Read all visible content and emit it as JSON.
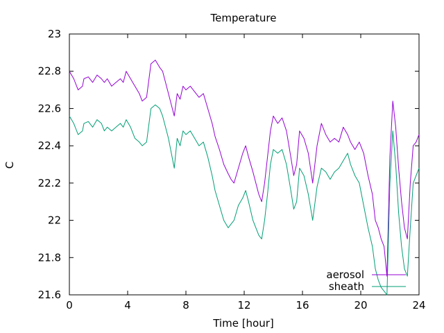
{
  "chart_data": {
    "type": "line",
    "title": "Temperature",
    "xlabel": "Time [hour]",
    "ylabel": "C",
    "xlim": [
      0,
      24
    ],
    "ylim": [
      21.6,
      23
    ],
    "xticks": [
      0,
      4,
      8,
      12,
      16,
      20,
      24
    ],
    "yticks": [
      21.6,
      21.8,
      22,
      22.2,
      22.4,
      22.6,
      22.8,
      23
    ],
    "ytick_labels": [
      "21.6",
      "21.8",
      "22",
      "22.2",
      "22.4",
      "22.6",
      "22.8",
      "23"
    ],
    "grid": false,
    "legend_position": "bottom-right",
    "series": [
      {
        "name": "aerosol",
        "color": "#9400d3",
        "x": [
          0,
          0.3,
          0.6,
          0.9,
          1.0,
          1.3,
          1.6,
          1.9,
          2.2,
          2.4,
          2.6,
          2.9,
          3.2,
          3.5,
          3.7,
          3.9,
          4.2,
          4.5,
          4.8,
          5.0,
          5.3,
          5.6,
          5.9,
          6.2,
          6.4,
          6.6,
          6.8,
          7.0,
          7.2,
          7.4,
          7.6,
          7.8,
          8.0,
          8.3,
          8.6,
          8.9,
          9.2,
          9.5,
          9.8,
          10.0,
          10.3,
          10.6,
          10.9,
          11.1,
          11.3,
          11.6,
          11.9,
          12.1,
          12.3,
          12.6,
          12.8,
          13.0,
          13.2,
          13.4,
          13.6,
          13.8,
          14.0,
          14.3,
          14.6,
          14.9,
          15.2,
          15.4,
          15.6,
          15.8,
          16.1,
          16.4,
          16.7,
          17.0,
          17.3,
          17.6,
          17.9,
          18.2,
          18.5,
          18.8,
          19.1,
          19.3,
          19.6,
          19.9,
          20.2,
          20.5,
          20.8,
          21.0,
          21.2,
          21.4,
          21.6,
          21.8,
          22.0,
          22.2,
          22.4,
          22.6,
          22.8,
          23.0,
          23.2,
          23.4,
          23.6,
          23.8,
          24.0
        ],
        "y": [
          22.8,
          22.76,
          22.7,
          22.72,
          22.76,
          22.77,
          22.74,
          22.78,
          22.76,
          22.74,
          22.76,
          22.72,
          22.74,
          22.76,
          22.74,
          22.8,
          22.76,
          22.72,
          22.68,
          22.64,
          22.66,
          22.84,
          22.86,
          22.82,
          22.8,
          22.74,
          22.68,
          22.62,
          22.56,
          22.68,
          22.65,
          22.72,
          22.7,
          22.72,
          22.69,
          22.66,
          22.68,
          22.6,
          22.52,
          22.45,
          22.38,
          22.3,
          22.25,
          22.22,
          22.2,
          22.28,
          22.36,
          22.4,
          22.34,
          22.26,
          22.2,
          22.14,
          22.1,
          22.2,
          22.34,
          22.48,
          22.56,
          22.52,
          22.55,
          22.48,
          22.34,
          22.24,
          22.3,
          22.48,
          22.44,
          22.36,
          22.2,
          22.4,
          22.52,
          22.46,
          22.42,
          22.44,
          22.42,
          22.5,
          22.46,
          22.42,
          22.38,
          22.42,
          22.36,
          22.24,
          22.14,
          22.0,
          21.96,
          21.9,
          21.86,
          21.7,
          22.34,
          22.64,
          22.5,
          22.28,
          22.1,
          21.96,
          21.9,
          22.2,
          22.4,
          22.42,
          22.46
        ]
      },
      {
        "name": "sheath",
        "color": "#009e73",
        "x": [
          0,
          0.3,
          0.6,
          0.9,
          1.0,
          1.3,
          1.6,
          1.9,
          2.2,
          2.4,
          2.6,
          2.9,
          3.2,
          3.5,
          3.7,
          3.9,
          4.2,
          4.5,
          4.8,
          5.0,
          5.3,
          5.6,
          5.9,
          6.2,
          6.4,
          6.6,
          6.8,
          7.0,
          7.2,
          7.4,
          7.6,
          7.8,
          8.0,
          8.3,
          8.6,
          8.9,
          9.2,
          9.5,
          9.8,
          10.0,
          10.3,
          10.6,
          10.9,
          11.1,
          11.3,
          11.6,
          11.9,
          12.1,
          12.3,
          12.6,
          12.8,
          13.0,
          13.2,
          13.4,
          13.6,
          13.8,
          14.0,
          14.3,
          14.6,
          14.9,
          15.2,
          15.4,
          15.6,
          15.8,
          16.1,
          16.4,
          16.7,
          17.0,
          17.3,
          17.6,
          17.9,
          18.2,
          18.5,
          18.8,
          19.1,
          19.3,
          19.6,
          19.9,
          20.2,
          20.5,
          20.8,
          21.0,
          21.2,
          21.4,
          21.6,
          21.8,
          22.0,
          22.2,
          22.4,
          22.6,
          22.8,
          23.0,
          23.2,
          23.4,
          23.6,
          23.8,
          24.0
        ],
        "y": [
          22.56,
          22.52,
          22.46,
          22.48,
          22.52,
          22.53,
          22.5,
          22.54,
          22.52,
          22.48,
          22.5,
          22.48,
          22.5,
          22.52,
          22.5,
          22.54,
          22.5,
          22.44,
          22.42,
          22.4,
          22.42,
          22.6,
          22.62,
          22.6,
          22.56,
          22.5,
          22.44,
          22.36,
          22.28,
          22.44,
          22.4,
          22.48,
          22.46,
          22.48,
          22.44,
          22.4,
          22.42,
          22.34,
          22.24,
          22.16,
          22.08,
          22.0,
          21.96,
          21.98,
          22.0,
          22.08,
          22.12,
          22.16,
          22.1,
          22.0,
          21.96,
          21.92,
          21.9,
          22.0,
          22.14,
          22.3,
          22.38,
          22.36,
          22.38,
          22.3,
          22.16,
          22.06,
          22.1,
          22.28,
          22.24,
          22.14,
          22.0,
          22.18,
          22.28,
          22.26,
          22.22,
          22.26,
          22.28,
          22.32,
          22.36,
          22.3,
          22.24,
          22.2,
          22.08,
          21.96,
          21.86,
          21.74,
          21.68,
          21.64,
          21.62,
          21.6,
          22.2,
          22.48,
          22.3,
          22.04,
          21.86,
          21.74,
          21.7,
          21.96,
          22.2,
          22.24,
          22.28
        ]
      }
    ]
  }
}
